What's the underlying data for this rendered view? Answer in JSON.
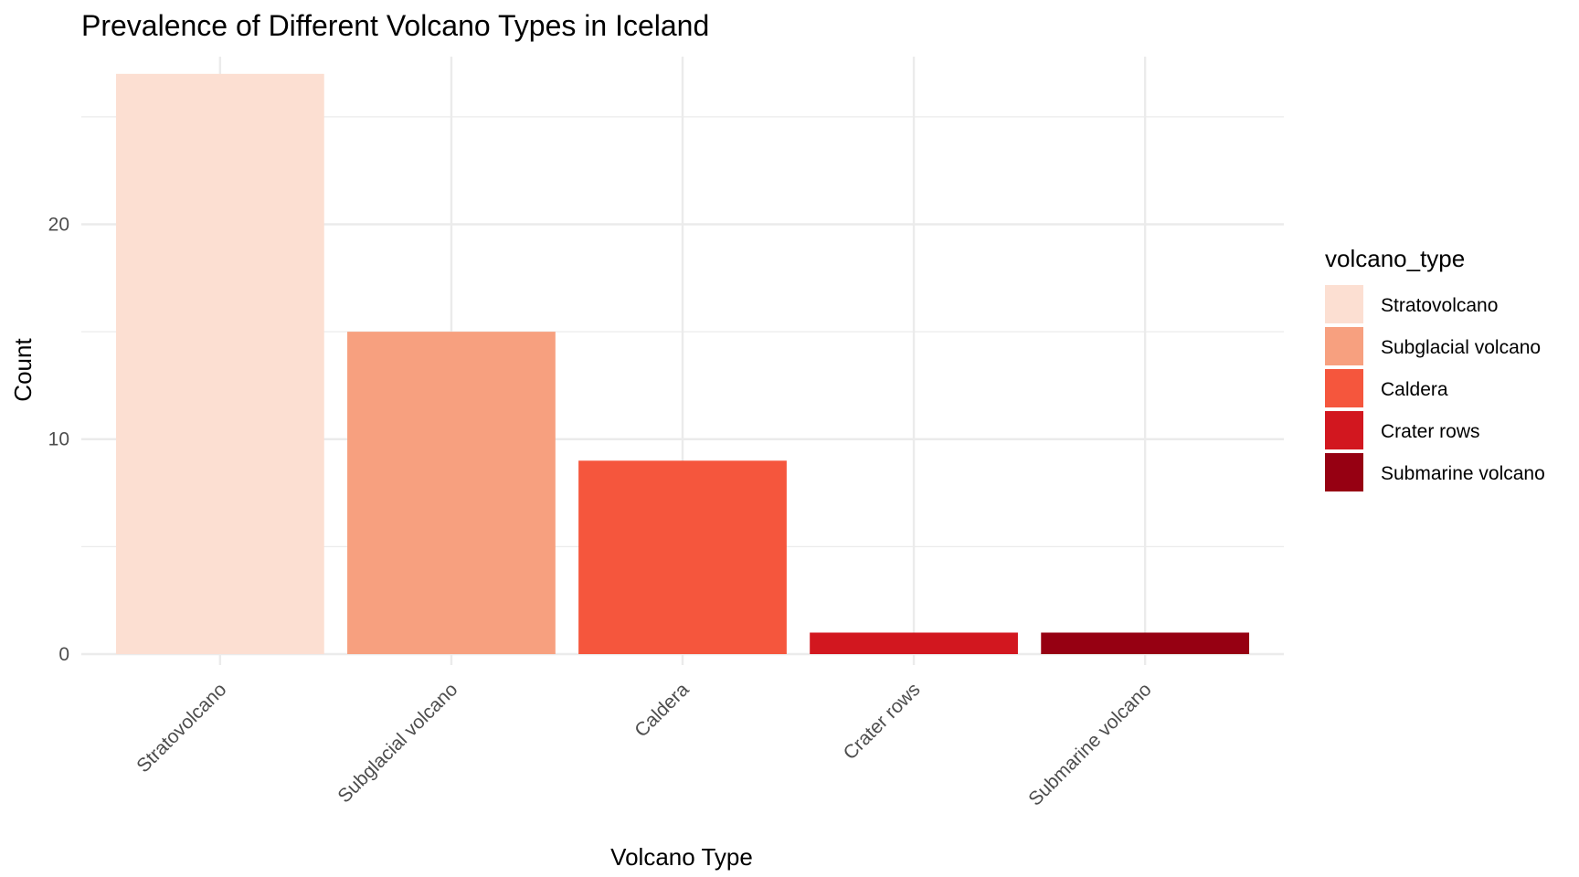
{
  "chart_data": {
    "type": "bar",
    "title": "Prevalence of Different Volcano Types in Iceland",
    "xlabel": "Volcano Type",
    "ylabel": "Count",
    "categories": [
      "Stratovolcano",
      "Subglacial volcano",
      "Caldera",
      "Crater rows",
      "Submarine volcano"
    ],
    "values": [
      27,
      15,
      9,
      1,
      1
    ],
    "colors": [
      "#FCDFD2",
      "#F7A07F",
      "#F5563D",
      "#D2171F",
      "#960012"
    ],
    "ylim": [
      0,
      27.8
    ],
    "yticks": [
      0,
      10,
      20
    ],
    "yticks_minor": [
      5,
      15,
      25
    ],
    "legend": {
      "title": "volcano_type",
      "position": "right",
      "entries": [
        "Stratovolcano",
        "Subglacial volcano",
        "Caldera",
        "Crater rows",
        "Submarine volcano"
      ]
    },
    "grid": true
  }
}
